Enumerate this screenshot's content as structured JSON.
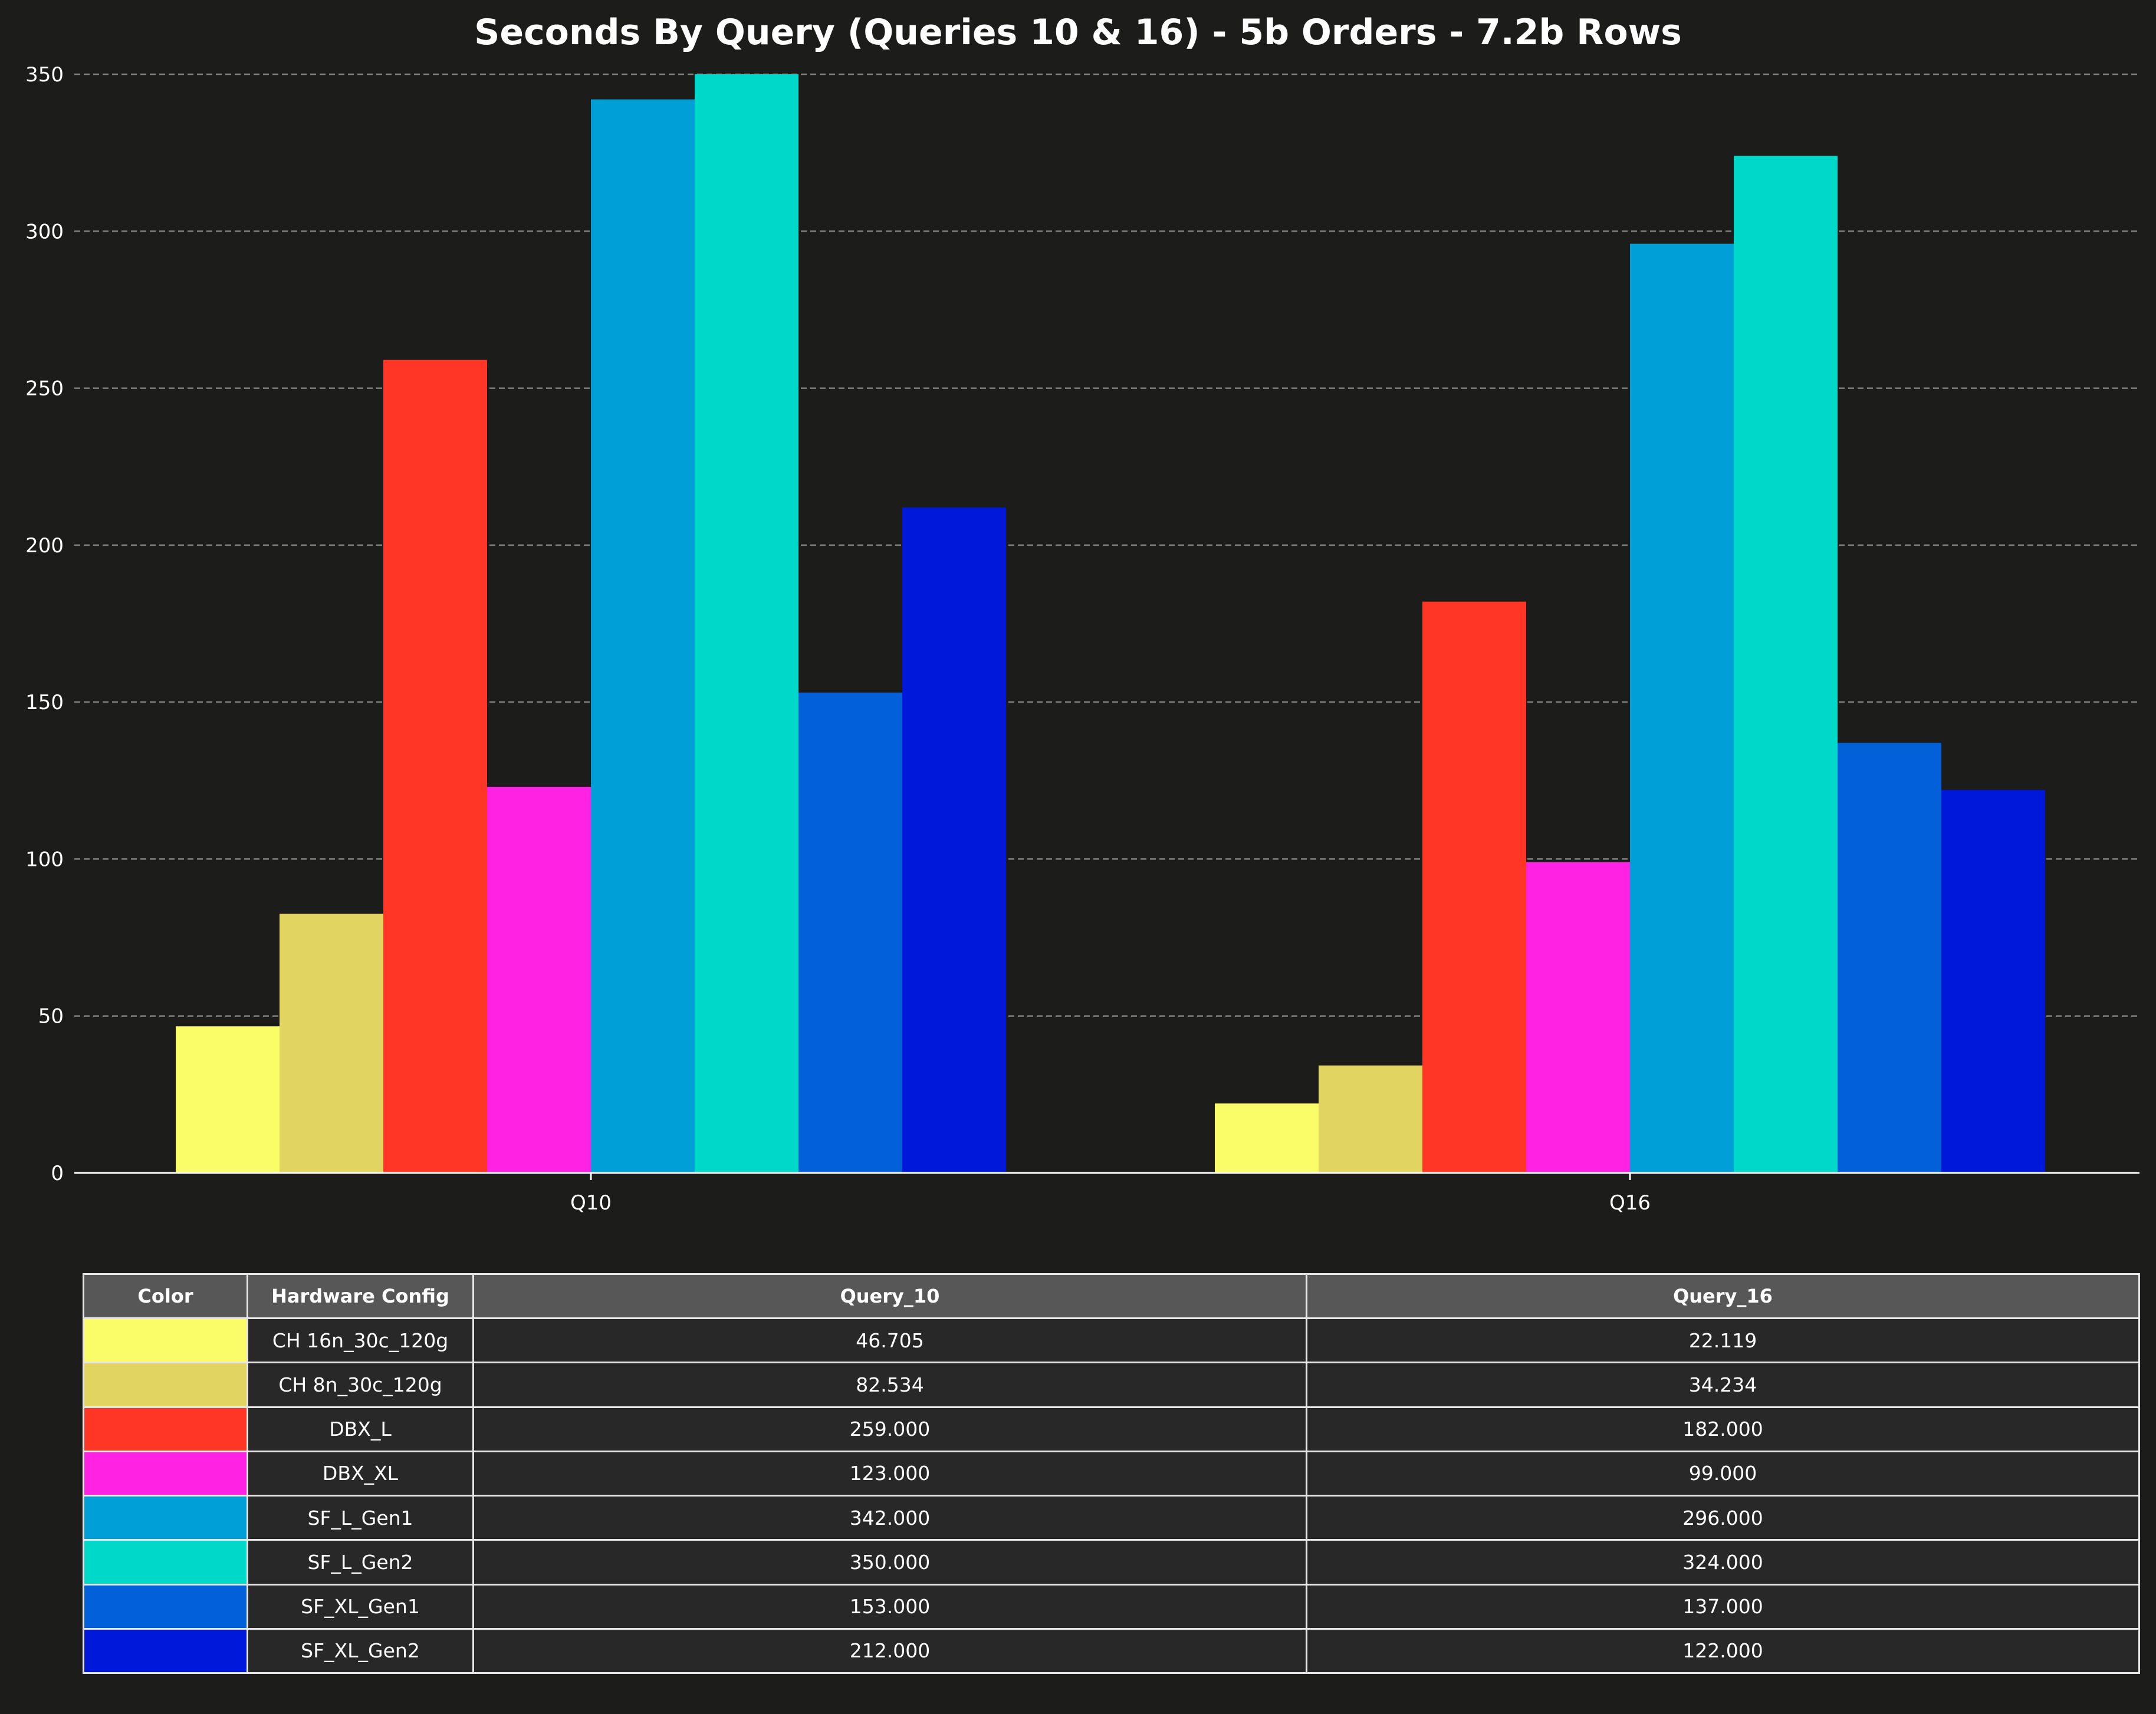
{
  "chart_data": {
    "type": "bar",
    "title": "Seconds By Query (Queries 10 & 16) - 5b Orders - 7.2b Rows",
    "xlabel": "",
    "ylabel": "",
    "categories": [
      "Q10",
      "Q16"
    ],
    "ylim": [
      0,
      350
    ],
    "yticks": [
      "0",
      "50",
      "100",
      "150",
      "200",
      "250",
      "300",
      "350"
    ],
    "grid": true,
    "series": [
      {
        "name": "CH 16n_30c_120g",
        "color": "#fbfd68",
        "values": [
          46.705,
          22.119
        ]
      },
      {
        "name": "CH 8n_30c_120g",
        "color": "#e2d460",
        "values": [
          82.534,
          34.234
        ]
      },
      {
        "name": "DBX_L",
        "color": "#ff3625",
        "values": [
          259.0,
          182.0
        ]
      },
      {
        "name": "DBX_XL",
        "color": "#ff22e2",
        "values": [
          123.0,
          99.0
        ]
      },
      {
        "name": "SF_L_Gen1",
        "color": "#009fd8",
        "values": [
          342.0,
          296.0
        ]
      },
      {
        "name": "SF_L_Gen2",
        "color": "#00d8c9",
        "values": [
          350.0,
          324.0
        ]
      },
      {
        "name": "SF_XL_Gen1",
        "color": "#0260d8",
        "values": [
          153.0,
          137.0
        ]
      },
      {
        "name": "SF_XL_Gen2",
        "color": "#0018da",
        "values": [
          212.0,
          122.0
        ]
      }
    ]
  },
  "table": {
    "headers": [
      "Color",
      "Hardware Config",
      "Query_10",
      "Query_16"
    ],
    "rows": [
      {
        "config": "CH 16n_30c_120g",
        "q10": "46.705",
        "q16": "22.119"
      },
      {
        "config": "CH 8n_30c_120g",
        "q10": "82.534",
        "q16": "34.234"
      },
      {
        "config": "DBX_L",
        "q10": "259.000",
        "q16": "182.000"
      },
      {
        "config": "DBX_XL",
        "q10": "123.000",
        "q16": "99.000"
      },
      {
        "config": "SF_L_Gen1",
        "q10": "342.000",
        "q16": "296.000"
      },
      {
        "config": "SF_L_Gen2",
        "q10": "350.000",
        "q16": "324.000"
      },
      {
        "config": "SF_XL_Gen1",
        "q10": "153.000",
        "q16": "137.000"
      },
      {
        "config": "SF_XL_Gen2",
        "q10": "212.000",
        "q16": "122.000"
      }
    ]
  }
}
